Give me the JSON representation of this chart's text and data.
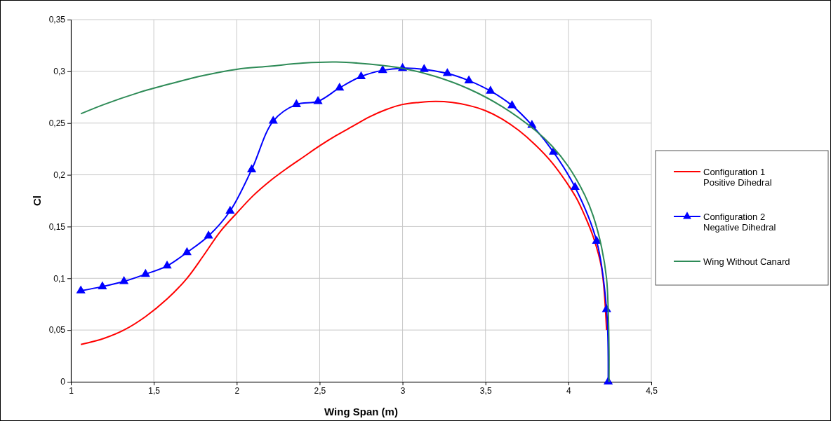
{
  "chart_data": {
    "type": "line",
    "xlabel": "Wing Span (m)",
    "ylabel": "Cl",
    "xlim": [
      1,
      4.5
    ],
    "xticks": [
      1,
      {
        "value": 1.5,
        "label": "1,5"
      },
      2,
      {
        "value": 2.5,
        "label": "2,5"
      },
      3,
      {
        "value": 3.5,
        "label": "3,5"
      },
      4,
      {
        "value": 4.5,
        "label": "4,5"
      }
    ],
    "ylim": [
      0,
      0.35
    ],
    "yticks": [
      0,
      {
        "value": 0.05,
        "label": "0,05"
      },
      {
        "value": 0.1,
        "label": "0,1"
      },
      {
        "value": 0.15,
        "label": "0,15"
      },
      {
        "value": 0.2,
        "label": "0,2"
      },
      {
        "value": 0.25,
        "label": "0,25"
      },
      {
        "value": 0.3,
        "label": "0,3"
      },
      {
        "value": 0.35,
        "label": "0,35"
      }
    ],
    "grid": true,
    "legend": "right",
    "line_style": "solid",
    "series": [
      {
        "name": "Configuration 1\nPositive Dihedral",
        "color": "#ff0000",
        "marker": "none",
        "x": [
          1.06,
          1.2,
          1.32,
          1.45,
          1.58,
          1.7,
          1.8,
          1.9,
          2.0,
          2.1,
          2.2,
          2.3,
          2.4,
          2.5,
          2.6,
          2.7,
          2.8,
          2.9,
          3.0,
          3.1,
          3.2,
          3.3,
          3.4,
          3.5,
          3.6,
          3.7,
          3.8,
          3.9,
          4.0,
          4.05,
          4.1,
          4.15,
          4.2,
          4.23
        ],
        "values": [
          0.036,
          0.042,
          0.05,
          0.063,
          0.08,
          0.1,
          0.122,
          0.145,
          0.163,
          0.18,
          0.194,
          0.206,
          0.217,
          0.228,
          0.238,
          0.247,
          0.256,
          0.263,
          0.268,
          0.27,
          0.271,
          0.27,
          0.267,
          0.262,
          0.254,
          0.243,
          0.229,
          0.212,
          0.19,
          0.177,
          0.16,
          0.14,
          0.11,
          0.05
        ]
      },
      {
        "name": "Configuration 2\nNegative Dihedral",
        "color": "#0000ff",
        "marker": "triangle",
        "x": [
          1.06,
          1.19,
          1.32,
          1.45,
          1.58,
          1.7,
          1.83,
          1.96,
          2.09,
          2.22,
          2.36,
          2.49,
          2.62,
          2.75,
          2.88,
          3.0,
          3.13,
          3.27,
          3.4,
          3.53,
          3.66,
          3.78,
          3.91,
          4.04,
          4.17,
          4.23,
          4.24
        ],
        "values": [
          0.088,
          0.092,
          0.097,
          0.104,
          0.112,
          0.125,
          0.141,
          0.165,
          0.205,
          0.252,
          0.268,
          0.271,
          0.284,
          0.295,
          0.301,
          0.303,
          0.302,
          0.298,
          0.291,
          0.281,
          0.267,
          0.248,
          0.222,
          0.188,
          0.136,
          0.07,
          0
        ]
      },
      {
        "name": "Wing Without Canard",
        "color": "#2e8b57",
        "marker": "none",
        "x": [
          1.06,
          1.2,
          1.4,
          1.6,
          1.8,
          2.0,
          2.2,
          2.4,
          2.6,
          2.8,
          3.0,
          3.2,
          3.4,
          3.6,
          3.8,
          3.9,
          4.0,
          4.1,
          4.15,
          4.2,
          4.23,
          4.24,
          4.245,
          4.245
        ],
        "values": [
          0.259,
          0.268,
          0.279,
          0.288,
          0.296,
          0.302,
          0.305,
          0.308,
          0.309,
          0.307,
          0.303,
          0.295,
          0.283,
          0.266,
          0.243,
          0.228,
          0.208,
          0.18,
          0.16,
          0.13,
          0.1,
          0.07,
          0.03,
          0
        ]
      }
    ]
  }
}
